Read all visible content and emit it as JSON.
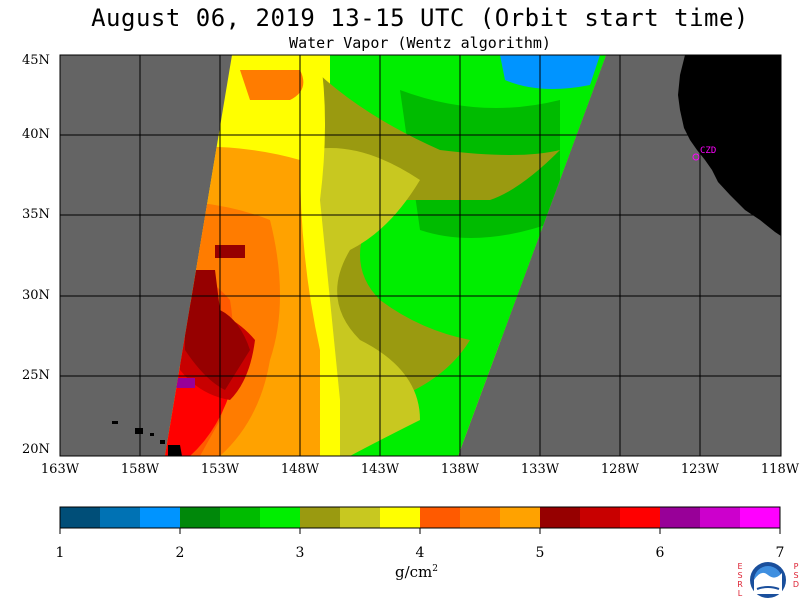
{
  "header": {
    "title": "August 06, 2019  13-15 UTC  (Orbit start time)",
    "subtitle": "Water Vapor (Wentz algorithm)"
  },
  "map": {
    "lat_labels": [
      "45N",
      "40N",
      "35N",
      "30N",
      "25N",
      "20N"
    ],
    "lon_labels": [
      "163W",
      "158W",
      "153W",
      "148W",
      "143W",
      "138W",
      "133W",
      "128W",
      "123W",
      "118W"
    ],
    "station_label": "CZD",
    "colors": {
      "no_data": "#646464",
      "land": "#000000",
      "grid": "#000000",
      "station": "#ff00ff"
    }
  },
  "colorbar": {
    "ticks": [
      "1",
      "2",
      "3",
      "4",
      "5",
      "6",
      "7"
    ],
    "units": "g/cm",
    "units_sup": "2",
    "colors": [
      "#004e78",
      "#0072b4",
      "#0094ff",
      "#00880a",
      "#00bb00",
      "#00ee00",
      "#9a9a10",
      "#c8c820",
      "#ffff00",
      "#ff5a00",
      "#ff7c00",
      "#ffa200",
      "#960000",
      "#c80000",
      "#ff0000",
      "#980098",
      "#cc00cc",
      "#ff00ff"
    ]
  },
  "logo": {
    "left_text": "ESRL",
    "right_text": "PSD"
  }
}
